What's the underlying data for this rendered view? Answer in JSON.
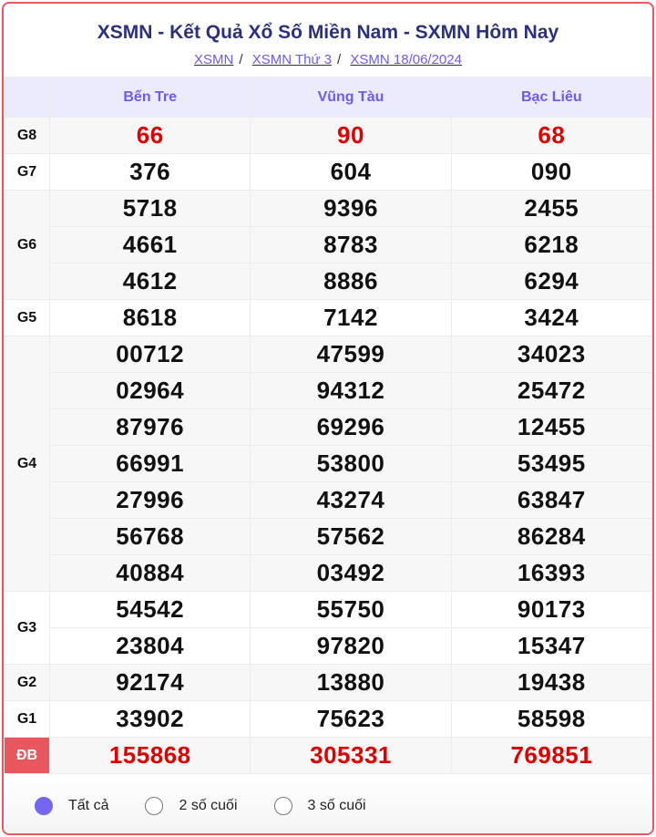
{
  "title": "XSMN - Kết Quả Xổ Số Miền Nam - SXMN Hôm Nay",
  "breadcrumb": [
    "XSMN",
    "XSMN Thứ 3",
    "XSMN 18/06/2024"
  ],
  "provinces": [
    "Bến Tre",
    "Vũng Tàu",
    "Bạc Liêu"
  ],
  "prizes": [
    {
      "label": "G8",
      "highlight": true,
      "rows": [
        [
          "66",
          "90",
          "68"
        ]
      ]
    },
    {
      "label": "G7",
      "rows": [
        [
          "376",
          "604",
          "090"
        ]
      ]
    },
    {
      "label": "G6",
      "rows": [
        [
          "5718",
          "9396",
          "2455"
        ],
        [
          "4661",
          "8783",
          "6218"
        ],
        [
          "4612",
          "8886",
          "6294"
        ]
      ]
    },
    {
      "label": "G5",
      "rows": [
        [
          "8618",
          "7142",
          "3424"
        ]
      ]
    },
    {
      "label": "G4",
      "rows": [
        [
          "00712",
          "47599",
          "34023"
        ],
        [
          "02964",
          "94312",
          "25472"
        ],
        [
          "87976",
          "69296",
          "12455"
        ],
        [
          "66991",
          "53800",
          "53495"
        ],
        [
          "27996",
          "43274",
          "63847"
        ],
        [
          "56768",
          "57562",
          "86284"
        ],
        [
          "40884",
          "03492",
          "16393"
        ]
      ]
    },
    {
      "label": "G3",
      "rows": [
        [
          "54542",
          "55750",
          "90173"
        ],
        [
          "23804",
          "97820",
          "15347"
        ]
      ]
    },
    {
      "label": "G2",
      "rows": [
        [
          "92174",
          "13880",
          "19438"
        ]
      ]
    },
    {
      "label": "G1",
      "rows": [
        [
          "33902",
          "75623",
          "58598"
        ]
      ]
    },
    {
      "label": "ĐB",
      "highlight": true,
      "special": true,
      "rows": [
        [
          "155868",
          "305331",
          "769851"
        ]
      ]
    }
  ],
  "filters": [
    {
      "label": "Tất cả",
      "selected": true
    },
    {
      "label": "2 số cuối",
      "selected": false
    },
    {
      "label": "3 số cuối",
      "selected": false
    }
  ],
  "colors": {
    "accent": "#6a5cf0",
    "title": "#2b3080",
    "highlight": "#e00000",
    "special_bg": "#e8575d",
    "border": "#e8585e"
  }
}
